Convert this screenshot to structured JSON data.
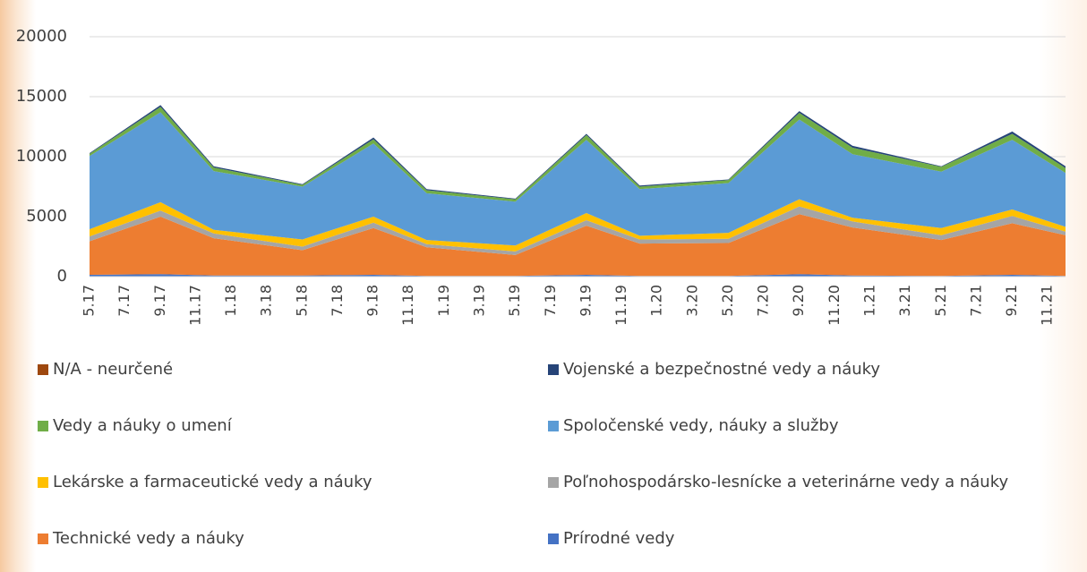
{
  "chart_data": {
    "type": "stacked_area",
    "categories": [
      "5.17",
      null,
      "7.17",
      null,
      "9.17",
      null,
      "11.17",
      null,
      "1.18",
      null,
      "3.18",
      null,
      "5.18",
      null,
      "7.18",
      null,
      "9.18",
      null,
      "11.18",
      null,
      "1.19",
      null,
      "3.19",
      null,
      "5.19",
      null,
      "7.19",
      null,
      "9.19",
      null,
      "11.19",
      null,
      "1.20",
      null,
      "3.20",
      null,
      "5.20",
      null,
      "7.20",
      null,
      "9.20",
      null,
      "11.20",
      null,
      "1.21",
      null,
      "3.21",
      null,
      "5.21",
      null,
      "7.21",
      null,
      "9.21",
      null,
      "11.21",
      null
    ],
    "ylim": [
      0,
      20000
    ],
    "yticks": [
      0,
      5000,
      10000,
      15000,
      20000
    ],
    "grid": true,
    "series": [
      {
        "name": "N/A - neurčené",
        "color": "#9e480e",
        "values": [
          0,
          null,
          null,
          null,
          0,
          null,
          null,
          0,
          null,
          null,
          null,
          null,
          0,
          null,
          null,
          null,
          0,
          null,
          null,
          0,
          null,
          null,
          null,
          null,
          0,
          null,
          null,
          null,
          0,
          null,
          null,
          0,
          null,
          null,
          null,
          null,
          0,
          null,
          null,
          null,
          0,
          null,
          null,
          0,
          null,
          null,
          null,
          null,
          0,
          null,
          null,
          null,
          0,
          null,
          null,
          0
        ]
      },
      {
        "name": "Vojenské a bezpečnostné vedy a náuky",
        "color": "#264478",
        "values": [
          50,
          null,
          null,
          null,
          150,
          null,
          null,
          100,
          null,
          null,
          null,
          null,
          50,
          null,
          null,
          null,
          150,
          null,
          null,
          100,
          null,
          null,
          null,
          null,
          50,
          null,
          null,
          null,
          100,
          null,
          null,
          100,
          null,
          null,
          null,
          null,
          50,
          null,
          null,
          null,
          150,
          null,
          null,
          150,
          null,
          null,
          null,
          null,
          50,
          null,
          null,
          null,
          200,
          null,
          null,
          150
        ]
      },
      {
        "name": "Vedy a náuky o umení",
        "color": "#70ad47",
        "values": [
          200,
          null,
          null,
          null,
          450,
          null,
          null,
          300,
          null,
          null,
          null,
          null,
          150,
          null,
          null,
          null,
          350,
          null,
          null,
          250,
          null,
          null,
          null,
          null,
          200,
          null,
          null,
          null,
          400,
          null,
          null,
          200,
          null,
          null,
          null,
          null,
          250,
          null,
          null,
          null,
          550,
          null,
          null,
          550,
          null,
          null,
          null,
          null,
          400,
          null,
          null,
          null,
          500,
          null,
          null,
          400
        ]
      },
      {
        "name": "Spoločenské vedy, náuky a služby",
        "color": "#5b9bd5",
        "values": [
          6100,
          null,
          null,
          null,
          7500,
          null,
          null,
          4900,
          null,
          null,
          null,
          null,
          4400,
          null,
          null,
          null,
          6100,
          null,
          null,
          3900,
          null,
          null,
          null,
          null,
          3650,
          null,
          null,
          null,
          6100,
          null,
          null,
          3900,
          null,
          null,
          null,
          null,
          4150,
          null,
          null,
          null,
          6650,
          null,
          null,
          5300,
          null,
          null,
          null,
          null,
          4700,
          null,
          null,
          null,
          5800,
          null,
          null,
          4500
        ]
      },
      {
        "name": "Lekárske a farmaceutické vedy a náuky",
        "color": "#ffc000",
        "values": [
          600,
          null,
          null,
          null,
          700,
          null,
          null,
          300,
          null,
          null,
          null,
          null,
          600,
          null,
          null,
          null,
          500,
          null,
          null,
          350,
          null,
          null,
          null,
          null,
          500,
          null,
          null,
          null,
          600,
          null,
          null,
          300,
          null,
          null,
          null,
          null,
          500,
          null,
          null,
          null,
          600,
          null,
          null,
          300,
          null,
          null,
          null,
          null,
          600,
          null,
          null,
          null,
          550,
          null,
          null,
          400
        ]
      },
      {
        "name": "Poľnohospodársko-lesnícke a veterinárne vedy a náuky",
        "color": "#a5a5a5",
        "values": [
          400,
          null,
          null,
          null,
          500,
          null,
          null,
          400,
          null,
          null,
          null,
          null,
          300,
          null,
          null,
          null,
          450,
          null,
          null,
          250,
          null,
          null,
          null,
          null,
          300,
          null,
          null,
          null,
          450,
          null,
          null,
          350,
          null,
          null,
          null,
          null,
          350,
          null,
          null,
          null,
          650,
          null,
          null,
          500,
          null,
          null,
          null,
          null,
          400,
          null,
          null,
          null,
          600,
          null,
          null,
          300
        ]
      },
      {
        "name": "Technické vedy a náuky",
        "color": "#ed7d31",
        "values": [
          2800,
          null,
          null,
          null,
          4800,
          null,
          null,
          3100,
          null,
          null,
          null,
          null,
          2100,
          null,
          null,
          null,
          3900,
          null,
          null,
          2400,
          null,
          null,
          null,
          null,
          1750,
          null,
          null,
          null,
          4100,
          null,
          null,
          2700,
          null,
          null,
          null,
          null,
          2750,
          null,
          null,
          null,
          5000,
          null,
          null,
          4000,
          null,
          null,
          null,
          null,
          3000,
          null,
          null,
          null,
          4300,
          null,
          null,
          3400
        ]
      },
      {
        "name": "Prírodné vedy",
        "color": "#4472c4",
        "values": [
          150,
          null,
          null,
          null,
          200,
          null,
          null,
          100,
          null,
          null,
          null,
          null,
          100,
          null,
          null,
          null,
          150,
          null,
          null,
          50,
          null,
          null,
          null,
          null,
          50,
          null,
          null,
          null,
          150,
          null,
          null,
          50,
          null,
          null,
          null,
          null,
          50,
          null,
          null,
          null,
          200,
          null,
          null,
          100,
          null,
          null,
          null,
          null,
          50,
          null,
          null,
          null,
          150,
          null,
          null,
          50
        ]
      }
    ]
  }
}
